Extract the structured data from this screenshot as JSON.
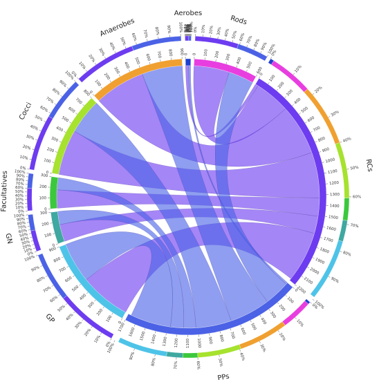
{
  "chart_data": {
    "type": "chord",
    "percent_ticks": [
      {
        "value": 0,
        "label": "0%"
      },
      {
        "value": 10,
        "label": "10%"
      },
      {
        "value": 20,
        "label": "20%"
      },
      {
        "value": 30,
        "label": "30%"
      },
      {
        "value": 40,
        "label": "40%"
      },
      {
        "value": 50,
        "label": "50%"
      },
      {
        "value": 60,
        "label": "60%"
      },
      {
        "value": 70,
        "label": "70%"
      },
      {
        "value": 80,
        "label": "80%"
      },
      {
        "value": 90,
        "label": "90%"
      },
      {
        "value": 100,
        "label": "100%"
      }
    ],
    "segments": [
      {
        "name": "Aerobes",
        "value": 50,
        "color": "#1f3fd0",
        "ticks": [
          0
        ]
      },
      {
        "name": "Rods",
        "value": 600,
        "color": "#e83ee0",
        "ticks": [
          0,
          100,
          200,
          300,
          400,
          500,
          600
        ]
      },
      {
        "name": "RCs",
        "value": 2200,
        "color": "#6d3cf0",
        "ticks": [
          0,
          100,
          200,
          300,
          400,
          500,
          600,
          700,
          800,
          900,
          1000,
          1100,
          1200,
          1300,
          1400,
          1500,
          1600,
          1700,
          1800,
          1900,
          2000,
          2100,
          2200
        ]
      },
      {
        "name": "PPs",
        "value": 1700,
        "color": "#4b62e6",
        "ticks": [
          0,
          100,
          200,
          300,
          400,
          500,
          600,
          700,
          800,
          900,
          1000,
          1100,
          1200,
          1300,
          1400,
          1500,
          1600,
          1700
        ]
      },
      {
        "name": "GP",
        "value": 900,
        "color": "#4ec3e8",
        "ticks": [
          0,
          100,
          200,
          300,
          400,
          500,
          600,
          700,
          800,
          900
        ]
      },
      {
        "name": "GN",
        "value": 300,
        "color": "#3fa8a0",
        "ticks": [
          0,
          100,
          200,
          300
        ]
      },
      {
        "name": "Facultatives",
        "value": 300,
        "color": "#3cc83c",
        "ticks": [
          0,
          100,
          200,
          300
        ]
      },
      {
        "name": "Cocci",
        "value": 800,
        "color": "#a6e22e",
        "ticks": [
          0,
          100,
          200,
          300,
          400,
          500,
          600,
          700,
          800
        ]
      },
      {
        "name": "Anaerobes",
        "value": 900,
        "color": "#f0a030",
        "ticks": [
          0,
          100,
          200,
          300,
          400,
          500,
          600,
          700,
          800,
          900
        ]
      }
    ],
    "links": [
      {
        "source": "RCs",
        "target": "Aerobes",
        "value": 30
      },
      {
        "source": "RCs",
        "target": "Rods",
        "value": 350
      },
      {
        "source": "RCs",
        "target": "Anaerobes",
        "value": 500
      },
      {
        "source": "RCs",
        "target": "Cocci",
        "value": 450
      },
      {
        "source": "RCs",
        "target": "Facultatives",
        "value": 180
      },
      {
        "source": "RCs",
        "target": "GN",
        "value": 170
      },
      {
        "source": "RCs",
        "target": "GP",
        "value": 500
      },
      {
        "source": "PPs",
        "target": "Aerobes",
        "value": 20
      },
      {
        "source": "PPs",
        "target": "Rods",
        "value": 250
      },
      {
        "source": "PPs",
        "target": "Anaerobes",
        "value": 400
      },
      {
        "source": "PPs",
        "target": "Cocci",
        "value": 350
      },
      {
        "source": "PPs",
        "target": "Facultatives",
        "value": 120
      },
      {
        "source": "PPs",
        "target": "GN",
        "value": 130
      },
      {
        "source": "PPs",
        "target": "GP",
        "value": 400
      }
    ]
  }
}
